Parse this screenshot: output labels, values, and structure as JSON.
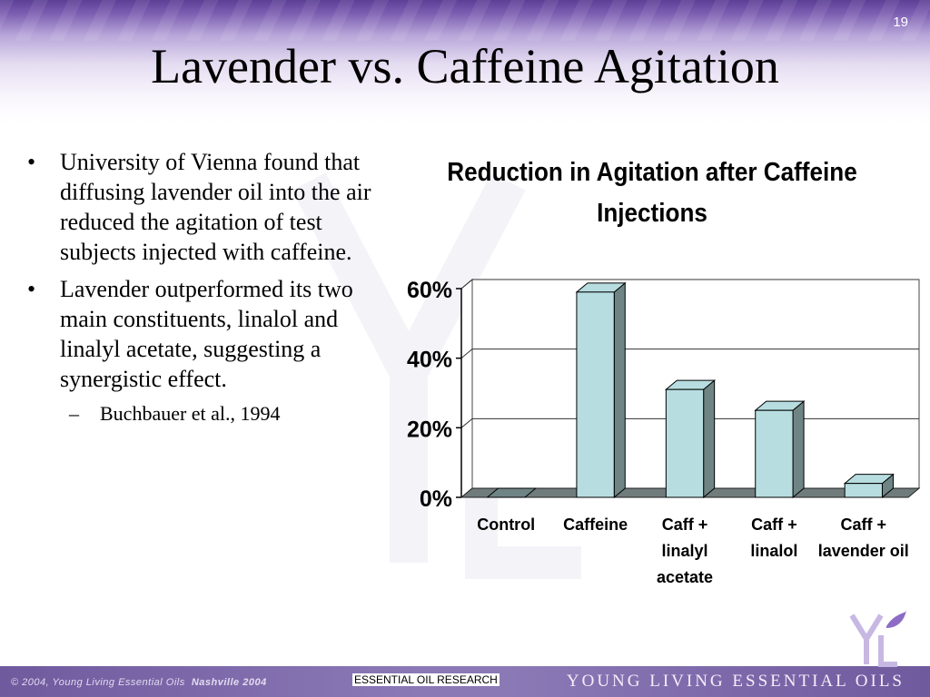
{
  "slide": {
    "number": "19",
    "title": "Lavender vs. Caffeine Agitation"
  },
  "bullets": [
    "University of Vienna found that diffusing lavender oil into the air reduced the agitation of test subjects injected with caffeine.",
    "Lavender outperformed its two main constituents, linalol and linalyl acetate, suggesting a synergistic effect."
  ],
  "sub_bullet": "Buchbauer et al., 1994",
  "chart_data": {
    "type": "bar",
    "title": "Reduction in Agitation after Caffeine Injections",
    "categories": [
      [
        "Control"
      ],
      [
        "Caffeine"
      ],
      [
        "Caff +",
        "linalyl",
        "acetate"
      ],
      [
        "Caff +",
        "linalol"
      ],
      [
        "Caff +",
        "lavender oil"
      ]
    ],
    "values": [
      0,
      59,
      31,
      25,
      4
    ],
    "y_ticks": [
      "0%",
      "20%",
      "40%",
      "60%"
    ],
    "ylim": [
      0,
      60
    ],
    "grid": true,
    "bar_color": "#b7dde0"
  },
  "footer": {
    "copyright": "© 2004, Young Living Essential Oils",
    "location": "Nashville 2004",
    "center": "ESSENTIAL OIL RESEARCH",
    "brand": "YOUNG LIVING ESSENTIAL OILS"
  },
  "colors": {
    "band": "#6f5a9e",
    "bar": "#b7dde0",
    "bar_side": "#6f8585",
    "floor": "#707b7b"
  },
  "icons": {
    "logo": "yl-logo-icon",
    "watermark": "yl-watermark-icon"
  }
}
